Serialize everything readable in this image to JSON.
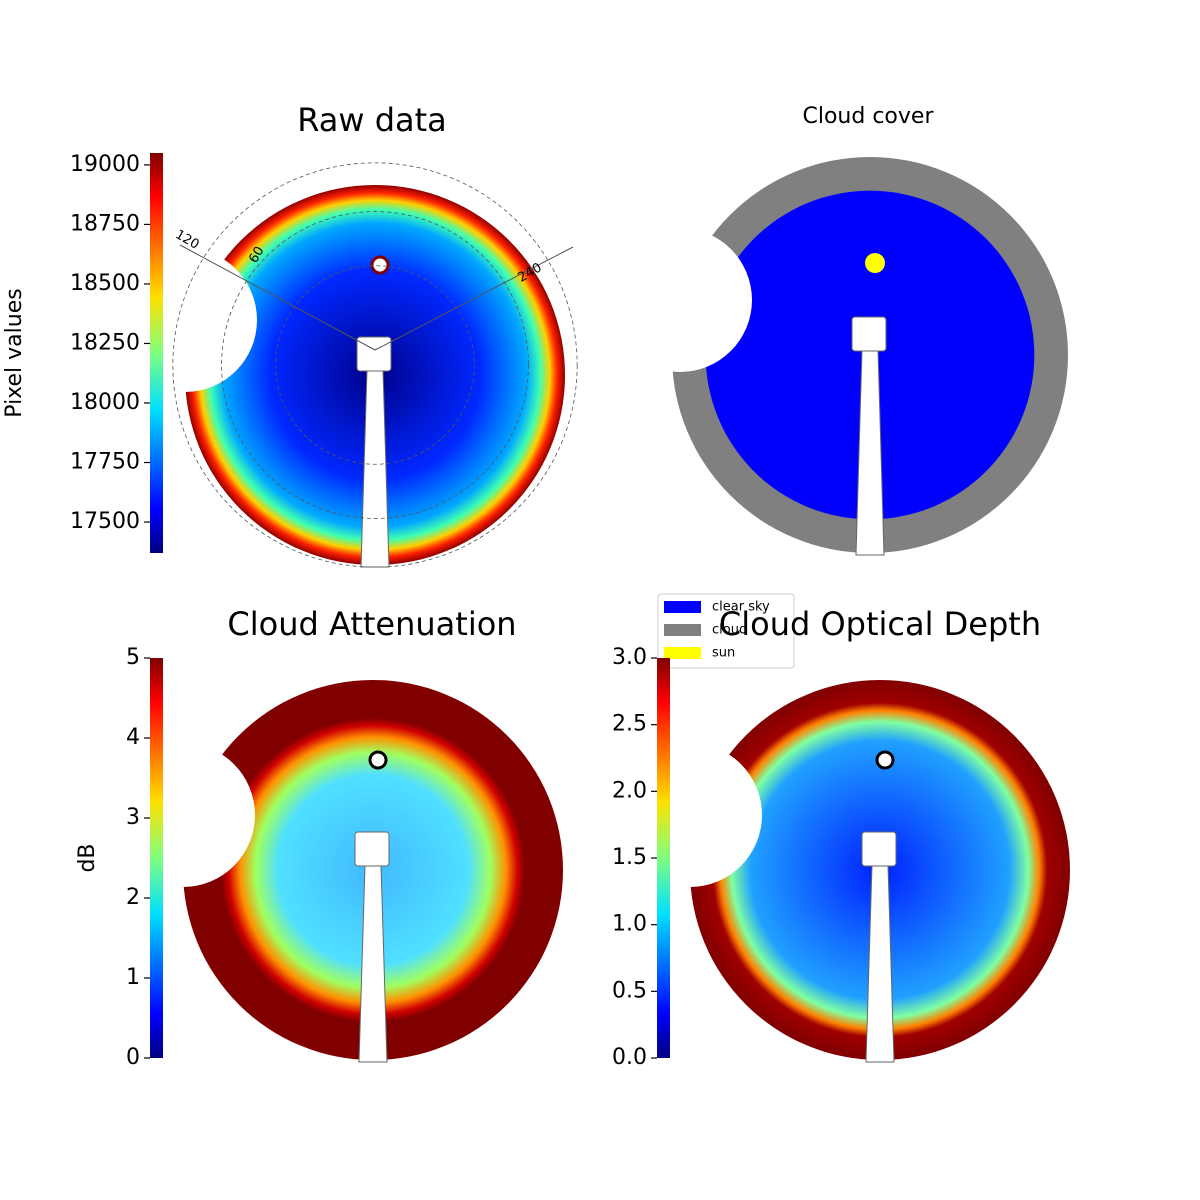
{
  "chart_data": [
    {
      "type": "image",
      "title": "Raw data",
      "colorbar_label": "Pixel values",
      "colormap": "jet",
      "ylim": [
        17370,
        19050
      ],
      "yticks": [
        17500,
        17750,
        18000,
        18250,
        18500,
        18750,
        19000
      ],
      "annotations": [
        "120",
        "60",
        "240"
      ]
    },
    {
      "type": "categorical-image",
      "title": "Cloud cover",
      "series": [
        {
          "name": "clear sky",
          "color": "#0000ff"
        },
        {
          "name": "cloud",
          "color": "#808080"
        },
        {
          "name": "sun",
          "color": "#ffff00"
        }
      ]
    },
    {
      "type": "image",
      "title": "Cloud Attenuation",
      "colorbar_label": "dB",
      "colormap": "jet",
      "ylim": [
        0,
        5
      ],
      "yticks": [
        0,
        1,
        2,
        3,
        4,
        5
      ]
    },
    {
      "type": "image",
      "title": "Cloud Optical Depth",
      "colormap": "jet",
      "ylim": [
        0,
        3
      ],
      "yticks": [
        {
          "value": 0,
          "label": "0.0"
        },
        0.5,
        {
          "value": 1,
          "label": "1.0"
        },
        1.5,
        {
          "value": 2,
          "label": "2.0"
        },
        2.5,
        {
          "value": 3,
          "label": "3.0"
        }
      ]
    }
  ]
}
